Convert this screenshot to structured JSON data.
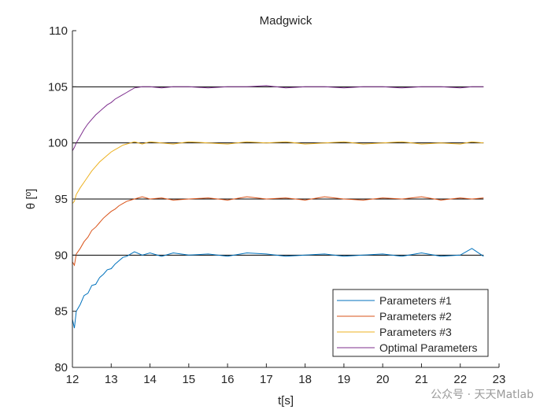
{
  "chart_data": {
    "type": "line",
    "title": "Madgwick",
    "xlabel": "t[s]",
    "ylabel": "θ [º]",
    "xlim": [
      12,
      23
    ],
    "ylim": [
      80,
      110
    ],
    "xticks": [
      12,
      13,
      14,
      15,
      16,
      17,
      18,
      19,
      20,
      21,
      22,
      23
    ],
    "yticks": [
      80,
      85,
      90,
      95,
      100,
      105,
      110
    ],
    "reference_lines": [
      90,
      95,
      100,
      105
    ],
    "legend_position": "bottom-right",
    "series": [
      {
        "name": "Parameters #1",
        "color": "#0072BD",
        "x": [
          12.0,
          12.05,
          12.1,
          12.2,
          12.3,
          12.4,
          12.5,
          12.6,
          12.7,
          12.8,
          12.9,
          13.0,
          13.1,
          13.2,
          13.3,
          13.4,
          13.5,
          13.6,
          13.8,
          14.0,
          14.3,
          14.6,
          15.0,
          15.5,
          16.0,
          16.5,
          17.0,
          17.5,
          18.0,
          18.5,
          19.0,
          19.5,
          20.0,
          20.5,
          21.0,
          21.5,
          22.0,
          22.3,
          22.6
        ],
        "y": [
          84.3,
          83.5,
          85.0,
          85.6,
          86.4,
          86.6,
          87.3,
          87.4,
          88.0,
          88.3,
          88.7,
          88.8,
          89.2,
          89.5,
          89.8,
          89.9,
          90.1,
          90.3,
          90.0,
          90.2,
          89.9,
          90.2,
          90.0,
          90.1,
          89.9,
          90.2,
          90.1,
          89.9,
          90.0,
          90.1,
          89.9,
          90.0,
          90.1,
          89.9,
          90.2,
          89.9,
          90.0,
          90.6,
          89.9
        ]
      },
      {
        "name": "Parameters #2",
        "color": "#D95319",
        "x": [
          12.0,
          12.05,
          12.1,
          12.2,
          12.3,
          12.4,
          12.5,
          12.6,
          12.7,
          12.8,
          12.9,
          13.0,
          13.1,
          13.2,
          13.3,
          13.4,
          13.5,
          13.6,
          13.8,
          14.0,
          14.3,
          14.6,
          15.0,
          15.5,
          16.0,
          16.5,
          17.0,
          17.5,
          18.0,
          18.5,
          19.0,
          19.5,
          20.0,
          20.5,
          21.0,
          21.5,
          22.0,
          22.3,
          22.6
        ],
        "y": [
          89.4,
          89.1,
          90.1,
          90.6,
          91.2,
          91.6,
          92.2,
          92.5,
          92.9,
          93.3,
          93.6,
          93.9,
          94.1,
          94.4,
          94.6,
          94.8,
          94.9,
          95.0,
          95.2,
          95.0,
          95.1,
          94.9,
          95.0,
          95.1,
          94.9,
          95.2,
          95.0,
          95.1,
          94.9,
          95.2,
          95.0,
          94.9,
          95.1,
          95.0,
          95.2,
          94.9,
          95.1,
          95.0,
          95.1
        ]
      },
      {
        "name": "Parameters #3",
        "color": "#EDB120",
        "x": [
          12.0,
          12.05,
          12.1,
          12.2,
          12.3,
          12.4,
          12.5,
          12.6,
          12.7,
          12.8,
          12.9,
          13.0,
          13.1,
          13.2,
          13.3,
          13.4,
          13.5,
          13.6,
          13.8,
          14.0,
          14.3,
          14.6,
          15.0,
          15.5,
          16.0,
          16.5,
          17.0,
          17.5,
          18.0,
          18.5,
          19.0,
          19.5,
          20.0,
          20.5,
          21.0,
          21.5,
          22.0,
          22.3,
          22.6
        ],
        "y": [
          94.6,
          94.8,
          95.4,
          96.0,
          96.5,
          97.0,
          97.5,
          97.9,
          98.3,
          98.6,
          98.9,
          99.2,
          99.4,
          99.6,
          99.8,
          99.9,
          100.0,
          100.1,
          99.9,
          100.1,
          100.0,
          99.9,
          100.1,
          100.0,
          99.9,
          100.1,
          100.0,
          100.1,
          99.9,
          100.0,
          100.1,
          99.9,
          100.0,
          100.1,
          99.9,
          100.0,
          99.9,
          100.1,
          100.0
        ]
      },
      {
        "name": "Optimal Parameters",
        "color": "#7E2F8E",
        "x": [
          12.0,
          12.05,
          12.1,
          12.2,
          12.3,
          12.4,
          12.5,
          12.6,
          12.7,
          12.8,
          12.9,
          13.0,
          13.1,
          13.2,
          13.3,
          13.4,
          13.5,
          13.6,
          13.8,
          14.0,
          14.3,
          14.6,
          15.0,
          15.5,
          16.0,
          16.5,
          17.0,
          17.5,
          18.0,
          18.5,
          19.0,
          19.5,
          20.0,
          20.5,
          21.0,
          21.5,
          22.0,
          22.3,
          22.6
        ],
        "y": [
          99.3,
          99.6,
          100.0,
          100.6,
          101.2,
          101.7,
          102.1,
          102.5,
          102.8,
          103.1,
          103.4,
          103.6,
          103.9,
          104.1,
          104.3,
          104.5,
          104.7,
          104.9,
          105.0,
          105.0,
          104.9,
          105.0,
          105.0,
          104.9,
          105.0,
          105.0,
          105.1,
          104.9,
          105.0,
          105.0,
          104.9,
          105.0,
          105.0,
          104.9,
          105.0,
          105.0,
          104.9,
          105.0,
          105.0
        ]
      }
    ]
  },
  "watermark": "公众号 · 天天Matlab"
}
